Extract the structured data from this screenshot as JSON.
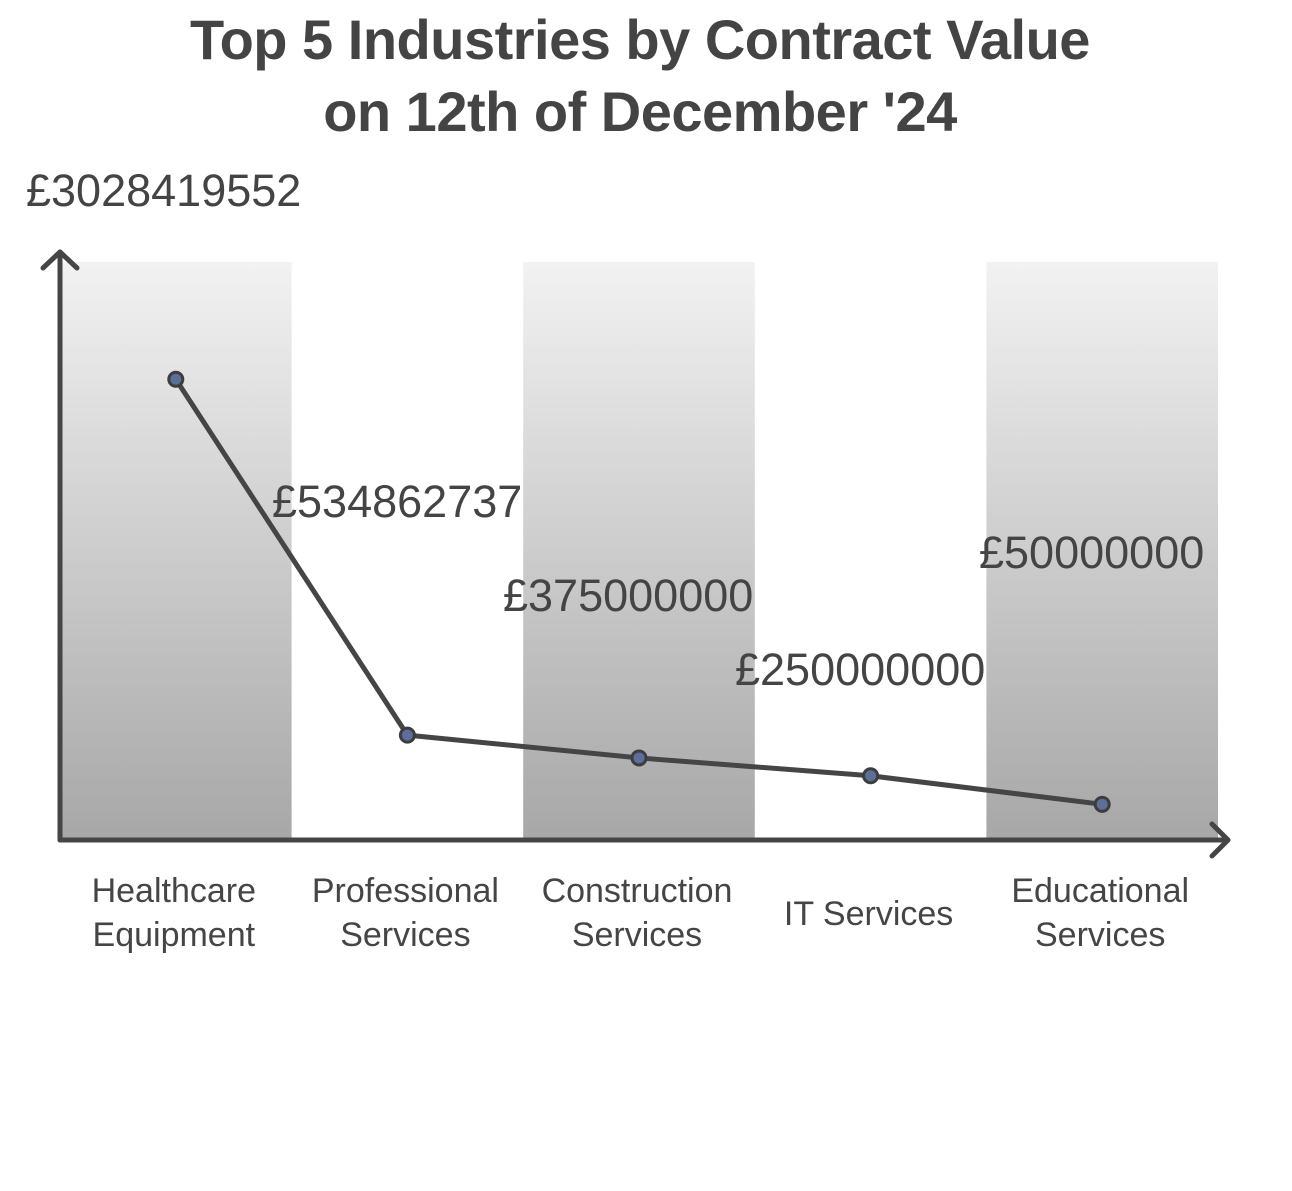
{
  "chart_data": {
    "type": "line",
    "title_lines": [
      "Top 5 Industries by Contract Value",
      "on 12th of December '24"
    ],
    "categories": [
      [
        "Healthcare",
        "Equipment"
      ],
      [
        "Professional",
        "Services"
      ],
      [
        "Construction",
        "Services"
      ],
      [
        "IT Services"
      ],
      [
        "Educational",
        "Services"
      ]
    ],
    "values": [
      3028419552,
      534862737,
      375000000,
      250000000,
      50000000
    ],
    "value_labels": [
      "£3028419552",
      "£534862737",
      "£375000000",
      "£250000000",
      "£50000000"
    ],
    "ylim": [
      -200000000,
      3850000000
    ],
    "colors": {
      "line": "#454545",
      "marker_fill": "#5b6f9a",
      "marker_stroke": "#3d3d3d",
      "band_top": "#f2f2f2",
      "band_bottom": "#a7a7a7",
      "axis": "#454545"
    }
  }
}
